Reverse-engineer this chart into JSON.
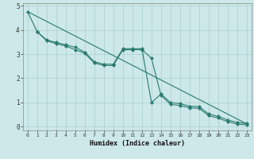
{
  "xlabel": "Humidex (Indice chaleur)",
  "bg_color": "#cde8e8",
  "grid_color": "#aacfcf",
  "line_color": "#2a7a70",
  "xlim": [
    -0.5,
    23.5
  ],
  "ylim": [
    -0.15,
    5.1
  ],
  "xticks": [
    0,
    1,
    2,
    3,
    4,
    5,
    6,
    7,
    8,
    9,
    10,
    11,
    12,
    13,
    14,
    15,
    16,
    17,
    18,
    19,
    20,
    21,
    22,
    23
  ],
  "yticks": [
    0,
    1,
    2,
    3,
    4,
    5
  ],
  "trend_x": [
    0,
    23
  ],
  "trend_y": [
    4.75,
    0.12
  ],
  "line1_x": [
    0,
    1,
    2,
    3,
    4,
    5,
    6,
    7,
    8,
    9,
    10,
    11,
    12,
    13,
    14,
    15,
    16,
    17,
    18,
    19,
    20,
    21,
    22,
    23
  ],
  "line1_y": [
    4.75,
    3.92,
    3.58,
    3.48,
    3.38,
    3.28,
    3.08,
    2.68,
    2.58,
    2.58,
    3.22,
    3.22,
    3.22,
    1.0,
    1.35,
    1.0,
    0.95,
    0.85,
    0.83,
    0.53,
    0.43,
    0.28,
    0.18,
    0.13
  ],
  "line2_x": [
    1,
    2,
    3,
    4,
    5,
    6,
    7,
    8,
    9,
    10,
    11,
    12,
    13,
    14,
    15,
    16,
    17,
    18,
    19,
    20,
    21,
    22,
    23
  ],
  "line2_y": [
    3.92,
    3.55,
    3.43,
    3.33,
    3.18,
    3.03,
    2.63,
    2.53,
    2.53,
    3.18,
    3.18,
    3.18,
    2.83,
    1.3,
    0.92,
    0.88,
    0.78,
    0.76,
    0.46,
    0.36,
    0.21,
    0.11,
    0.08
  ]
}
